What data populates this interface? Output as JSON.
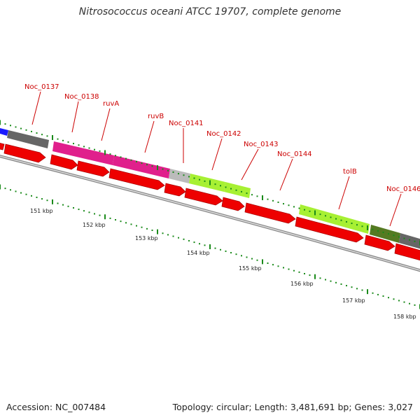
{
  "title": "Nitrosococcus oceani ATCC 19707, complete genome",
  "footer": {
    "accession": "Accession: NC_007484",
    "info": "Topology: circular; Length: 3,481,691 bp; Genes: 3,027"
  },
  "colors": {
    "cds": "#ff0000",
    "label": "#cc0000",
    "tick": "#1a8a1a",
    "backbone": "#999999"
  },
  "gene_labels": [
    "Noc_0137",
    "Noc_0138",
    "ruvA",
    "ruvB",
    "Noc_0141",
    "Noc_0142",
    "Noc_0143",
    "Noc_0144",
    "tolB",
    "Noc_0146"
  ],
  "kbp_labels": [
    "151 kbp",
    "152 kbp",
    "153 kbp",
    "154 kbp",
    "155 kbp",
    "156 kbp",
    "157 kbp",
    "158 kbp"
  ]
}
